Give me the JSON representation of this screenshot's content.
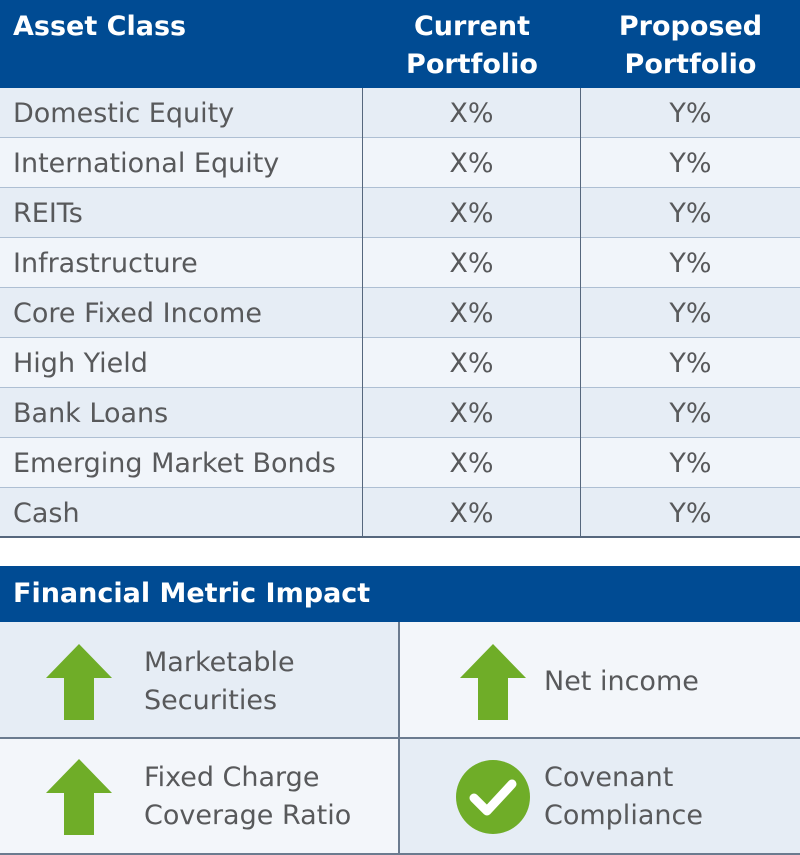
{
  "allocation_table": {
    "headers": {
      "asset_class": "Asset Class",
      "current": "Current\nPortfolio",
      "proposed": "Proposed\nPortfolio"
    },
    "rows": [
      {
        "asset": "Domestic Equity",
        "current": "X%",
        "proposed": "Y%"
      },
      {
        "asset": "International Equity",
        "current": "X%",
        "proposed": "Y%"
      },
      {
        "asset": "REITs",
        "current": "X%",
        "proposed": "Y%"
      },
      {
        "asset": "Infrastructure",
        "current": "X%",
        "proposed": "Y%"
      },
      {
        "asset": "Core Fixed Income",
        "current": "X%",
        "proposed": "Y%"
      },
      {
        "asset": "High Yield",
        "current": "X%",
        "proposed": "Y%"
      },
      {
        "asset": "Bank Loans",
        "current": "X%",
        "proposed": "Y%"
      },
      {
        "asset": "Emerging Market Bonds",
        "current": "X%",
        "proposed": "Y%"
      },
      {
        "asset": "Cash",
        "current": "X%",
        "proposed": "Y%"
      }
    ]
  },
  "metric_impact": {
    "title": "Financial Metric Impact",
    "items": [
      {
        "label": "Marketable\nSecurities",
        "icon": "up-arrow-icon"
      },
      {
        "label": "Net income",
        "icon": "up-arrow-icon"
      },
      {
        "label": "Fixed Charge\nCoverage Ratio",
        "icon": "up-arrow-icon"
      },
      {
        "label": "Covenant\nCompliance",
        "icon": "checkmark-circle-icon"
      }
    ]
  },
  "colors": {
    "header_blue": "#004b93",
    "icon_green": "#6fad28",
    "text_gray": "#58595b"
  }
}
